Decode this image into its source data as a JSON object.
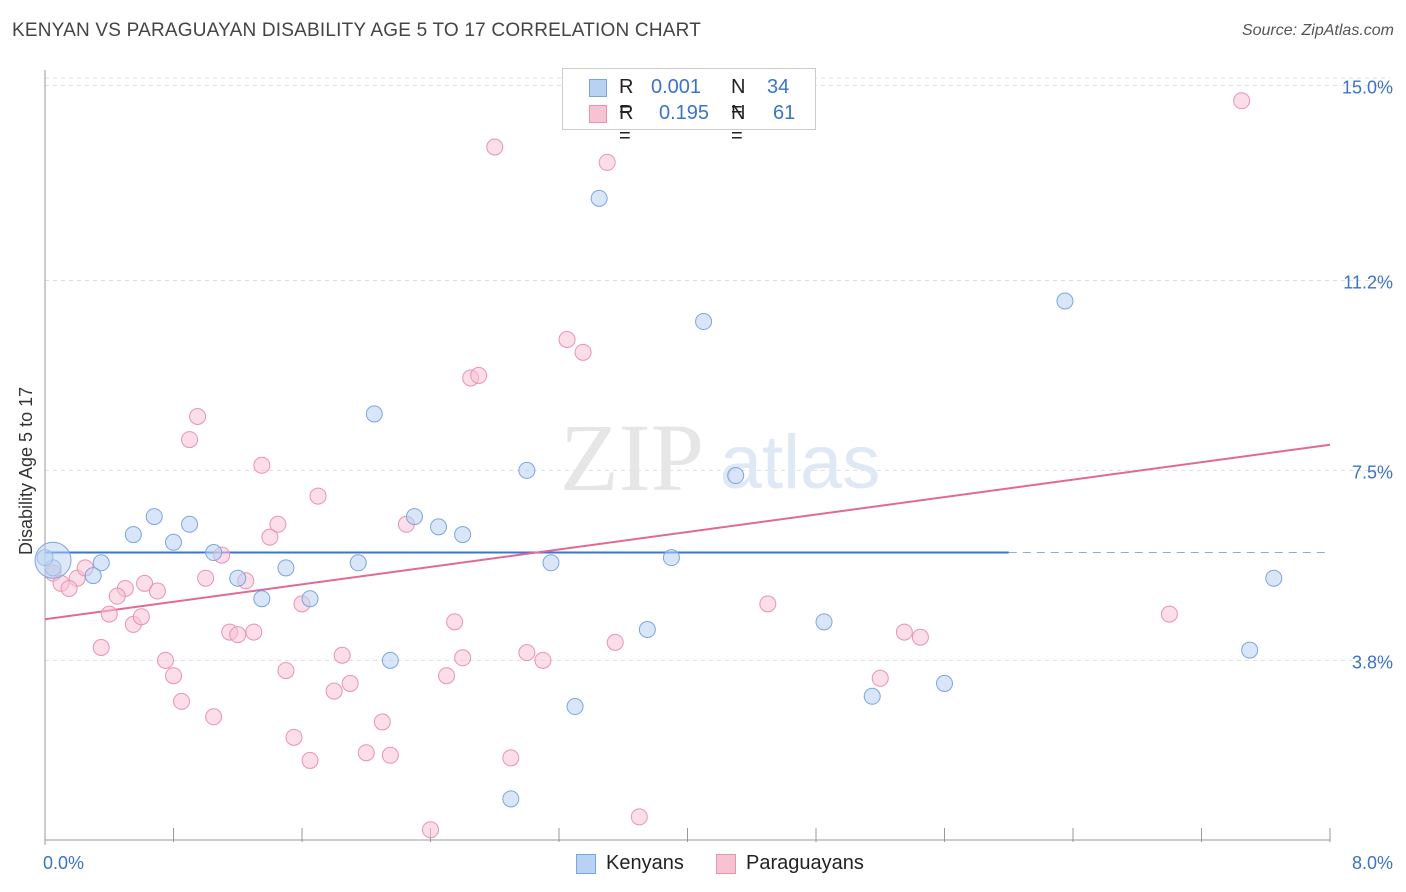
{
  "header": {
    "title": "KENYAN VS PARAGUAYAN DISABILITY AGE 5 TO 17 CORRELATION CHART",
    "source": "Source: ZipAtlas.com"
  },
  "watermark": {
    "zip": "ZIP",
    "atlas": "atlas"
  },
  "legend": {
    "kenyans": {
      "r_label": "R =",
      "r_value": "0.001",
      "n_label": "N =",
      "n_value": "34"
    },
    "paraguayans": {
      "r_label": "R =",
      "r_value": "0.195",
      "n_label": "N =",
      "n_value": "61"
    }
  },
  "bottom_legend": {
    "kenyans": "Kenyans",
    "paraguayans": "Paraguayans"
  },
  "colors": {
    "kenyans_fill": "#b9d1f2",
    "kenyans_stroke": "#7aa6df",
    "kenyans_line": "#3a76d0",
    "paraguayans_fill": "#f7c3d3",
    "paraguayans_stroke": "#ea93b0",
    "paraguayans_line": "#e26896",
    "tick_label": "#3b73c8",
    "grid": "#dddddd"
  },
  "chart_data": {
    "type": "scatter",
    "title": "KENYAN VS PARAGUAYAN DISABILITY AGE 5 TO 17 CORRELATION CHART",
    "xlabel": "",
    "ylabel": "Disability Age 5 to 17",
    "xlim": [
      0.0,
      8.0
    ],
    "ylim": [
      0.3,
      15.3
    ],
    "x_tick_labels": [
      "0.0%",
      "8.0%"
    ],
    "y_ticks": [
      3.8,
      7.5,
      11.2,
      15.0
    ],
    "y_tick_labels": [
      "3.8%",
      "7.5%",
      "11.2%",
      "15.0%"
    ],
    "grid": true,
    "legend_position": "top-center",
    "series": [
      {
        "name": "Kenyans",
        "r": 0.001,
        "n": 34,
        "trend": {
          "x": [
            0.0,
            6.0
          ],
          "y": [
            5.9,
            5.9
          ],
          "dashed_to": 8.0
        },
        "points": [
          [
            0.05,
            5.6
          ],
          [
            0.35,
            5.7
          ],
          [
            0.3,
            5.45
          ],
          [
            0.55,
            6.25
          ],
          [
            0.68,
            6.6
          ],
          [
            0.8,
            6.1
          ],
          [
            0.9,
            6.45
          ],
          [
            1.05,
            5.9
          ],
          [
            1.2,
            5.4
          ],
          [
            1.35,
            5.0
          ],
          [
            1.5,
            5.6
          ],
          [
            1.65,
            5.0
          ],
          [
            1.95,
            5.7
          ],
          [
            2.05,
            8.6
          ],
          [
            2.15,
            3.8
          ],
          [
            2.3,
            6.6
          ],
          [
            2.45,
            6.4
          ],
          [
            2.6,
            6.25
          ],
          [
            2.9,
            1.1
          ],
          [
            3.0,
            7.5
          ],
          [
            3.15,
            5.7
          ],
          [
            3.3,
            2.9
          ],
          [
            3.45,
            12.8
          ],
          [
            3.75,
            4.4
          ],
          [
            3.9,
            5.8
          ],
          [
            4.1,
            10.4
          ],
          [
            4.3,
            7.4
          ],
          [
            4.85,
            4.55
          ],
          [
            5.15,
            3.1
          ],
          [
            5.6,
            3.35
          ],
          [
            6.35,
            10.8
          ],
          [
            7.5,
            4.0
          ],
          [
            7.65,
            5.4
          ],
          [
            0.0,
            5.8
          ]
        ]
      },
      {
        "name": "Paraguayans",
        "r": 0.195,
        "n": 61,
        "trend": {
          "x": [
            0.0,
            8.0
          ],
          "y": [
            4.6,
            8.0
          ]
        },
        "points": [
          [
            0.05,
            5.5
          ],
          [
            0.1,
            5.3
          ],
          [
            0.2,
            5.4
          ],
          [
            0.25,
            5.6
          ],
          [
            0.35,
            4.05
          ],
          [
            0.4,
            4.7
          ],
          [
            0.5,
            5.2
          ],
          [
            0.55,
            4.5
          ],
          [
            0.6,
            4.65
          ],
          [
            0.62,
            5.3
          ],
          [
            0.7,
            5.15
          ],
          [
            0.75,
            3.8
          ],
          [
            0.8,
            3.5
          ],
          [
            0.85,
            3.0
          ],
          [
            0.9,
            8.1
          ],
          [
            0.95,
            8.55
          ],
          [
            1.0,
            5.4
          ],
          [
            1.05,
            2.7
          ],
          [
            1.1,
            5.85
          ],
          [
            1.15,
            4.35
          ],
          [
            1.2,
            4.3
          ],
          [
            1.25,
            5.35
          ],
          [
            1.3,
            4.35
          ],
          [
            1.35,
            7.6
          ],
          [
            1.4,
            6.2
          ],
          [
            1.45,
            6.45
          ],
          [
            1.5,
            3.6
          ],
          [
            1.55,
            2.3
          ],
          [
            1.6,
            4.9
          ],
          [
            1.65,
            1.85
          ],
          [
            1.7,
            7.0
          ],
          [
            1.8,
            3.2
          ],
          [
            1.85,
            3.9
          ],
          [
            1.9,
            3.35
          ],
          [
            2.0,
            2.0
          ],
          [
            2.1,
            2.6
          ],
          [
            2.15,
            1.95
          ],
          [
            2.25,
            6.45
          ],
          [
            2.4,
            0.5
          ],
          [
            2.5,
            3.5
          ],
          [
            2.55,
            4.55
          ],
          [
            2.6,
            3.85
          ],
          [
            2.65,
            9.3
          ],
          [
            2.7,
            9.35
          ],
          [
            2.8,
            13.8
          ],
          [
            2.9,
            1.9
          ],
          [
            3.0,
            3.95
          ],
          [
            3.1,
            3.8
          ],
          [
            3.25,
            10.05
          ],
          [
            3.35,
            9.8
          ],
          [
            3.5,
            13.5
          ],
          [
            3.55,
            4.15
          ],
          [
            3.7,
            0.75
          ],
          [
            4.5,
            4.9
          ],
          [
            5.2,
            3.45
          ],
          [
            5.35,
            4.35
          ],
          [
            5.45,
            4.25
          ],
          [
            7.0,
            4.7
          ],
          [
            7.45,
            14.7
          ],
          [
            0.15,
            5.2
          ],
          [
            0.45,
            5.05
          ]
        ]
      }
    ]
  }
}
